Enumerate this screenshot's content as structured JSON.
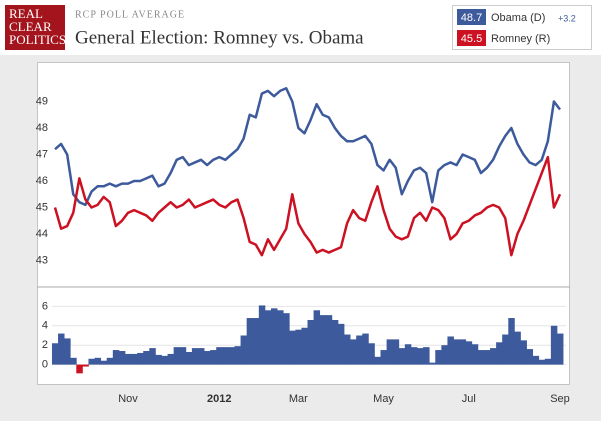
{
  "header": {
    "logo": [
      "REAL",
      "CLEAR",
      "POLITICS"
    ],
    "kicker": "RCP POLL AVERAGE",
    "title": "General Election: Romney vs. Obama"
  },
  "legend": [
    {
      "value": 48.7,
      "label": "Obama (D)",
      "color": "#3d5a9c",
      "change": "+3.2"
    },
    {
      "value": 45.5,
      "label": "Romney (R)",
      "color": "#cc1122"
    }
  ],
  "chart_data": [
    {
      "type": "line",
      "grid": false,
      "ylim": [
        42,
        50
      ],
      "yticks": [
        43,
        44,
        45,
        46,
        47,
        48,
        49
      ],
      "series": [
        {
          "name": "Obama (D)",
          "color": "#3d5a9c",
          "values": [
            47.2,
            47.4,
            47.0,
            45.5,
            45.2,
            45.1,
            45.6,
            45.8,
            45.8,
            45.9,
            45.8,
            45.9,
            45.9,
            46.0,
            46.0,
            46.1,
            46.2,
            45.8,
            45.9,
            46.3,
            46.8,
            46.9,
            46.6,
            46.7,
            46.8,
            46.6,
            46.8,
            46.9,
            46.8,
            47.0,
            47.2,
            47.6,
            48.5,
            48.4,
            49.3,
            49.4,
            49.2,
            49.4,
            49.5,
            49.0,
            48.0,
            47.8,
            48.3,
            48.9,
            48.5,
            48.4,
            48.0,
            47.7,
            47.5,
            47.5,
            47.6,
            47.7,
            47.4,
            46.6,
            46.4,
            46.8,
            46.5,
            45.5,
            46.0,
            46.4,
            46.5,
            46.3,
            45.2,
            46.4,
            46.6,
            46.7,
            46.6,
            47.0,
            46.9,
            46.8,
            46.3,
            46.5,
            46.8,
            47.3,
            47.7,
            48.0,
            47.4,
            47.0,
            46.7,
            46.6,
            46.8,
            47.5,
            49.0,
            48.7
          ]
        },
        {
          "name": "Romney (R)",
          "color": "#cc1122",
          "values": [
            45.0,
            44.2,
            44.3,
            44.8,
            46.1,
            45.3,
            45.0,
            45.1,
            45.4,
            45.2,
            44.3,
            44.5,
            44.8,
            44.9,
            44.8,
            44.7,
            44.5,
            44.8,
            45.0,
            45.2,
            45.0,
            45.1,
            45.3,
            45.0,
            45.1,
            45.2,
            45.3,
            45.1,
            45.0,
            45.2,
            45.3,
            44.6,
            43.7,
            43.6,
            43.2,
            43.8,
            43.4,
            43.8,
            44.2,
            45.5,
            44.4,
            44.0,
            43.7,
            43.3,
            43.4,
            43.3,
            43.4,
            43.5,
            44.4,
            44.9,
            44.6,
            44.5,
            45.2,
            45.8,
            44.9,
            44.2,
            43.9,
            43.8,
            43.9,
            44.6,
            44.8,
            44.5,
            45.0,
            44.9,
            44.6,
            43.8,
            44.0,
            44.4,
            44.5,
            44.7,
            44.8,
            45.0,
            45.1,
            45.0,
            44.6,
            43.2,
            44.0,
            44.5,
            45.1,
            45.7,
            46.3,
            46.9,
            45.0,
            45.5
          ]
        }
      ]
    },
    {
      "type": "area",
      "grid": true,
      "ylim": [
        -2,
        8
      ],
      "yticks": [
        0,
        2,
        4,
        6
      ],
      "color": "#3d5a9c",
      "negative_color": "#cc1122",
      "categories": [
        null,
        null,
        null,
        null,
        null,
        null,
        null,
        null,
        null,
        null,
        null,
        null,
        "Nov",
        null,
        null,
        null,
        null,
        null,
        null,
        null,
        null,
        null,
        null,
        null,
        null,
        null,
        null,
        "2012",
        null,
        null,
        null,
        null,
        null,
        null,
        null,
        null,
        null,
        null,
        null,
        null,
        "Mar",
        null,
        null,
        null,
        null,
        null,
        null,
        null,
        null,
        null,
        null,
        null,
        null,
        null,
        "May",
        null,
        null,
        null,
        null,
        null,
        null,
        null,
        null,
        null,
        null,
        null,
        null,
        null,
        "Jul",
        null,
        null,
        null,
        null,
        null,
        null,
        null,
        null,
        null,
        null,
        null,
        null,
        null,
        null,
        "Sep"
      ],
      "values": [
        2.2,
        3.2,
        2.7,
        0.7,
        -0.9,
        -0.2,
        0.6,
        0.7,
        0.4,
        0.7,
        1.5,
        1.4,
        1.1,
        1.1,
        1.2,
        1.4,
        1.7,
        1.0,
        0.9,
        1.1,
        1.8,
        1.8,
        1.3,
        1.7,
        1.7,
        1.4,
        1.5,
        1.8,
        1.8,
        1.8,
        1.9,
        3.0,
        4.8,
        4.8,
        6.1,
        5.6,
        5.8,
        5.6,
        5.3,
        3.5,
        3.6,
        3.8,
        4.6,
        5.6,
        5.1,
        5.1,
        4.6,
        4.2,
        3.1,
        2.6,
        3.0,
        3.2,
        2.2,
        0.8,
        1.5,
        2.6,
        2.6,
        1.7,
        2.1,
        1.8,
        1.7,
        1.8,
        0.2,
        1.5,
        2.0,
        2.9,
        2.6,
        2.6,
        2.4,
        2.1,
        1.5,
        1.5,
        1.7,
        2.3,
        3.1,
        4.8,
        3.4,
        2.5,
        1.6,
        0.9,
        0.5,
        0.6,
        4.0,
        3.2
      ]
    }
  ]
}
